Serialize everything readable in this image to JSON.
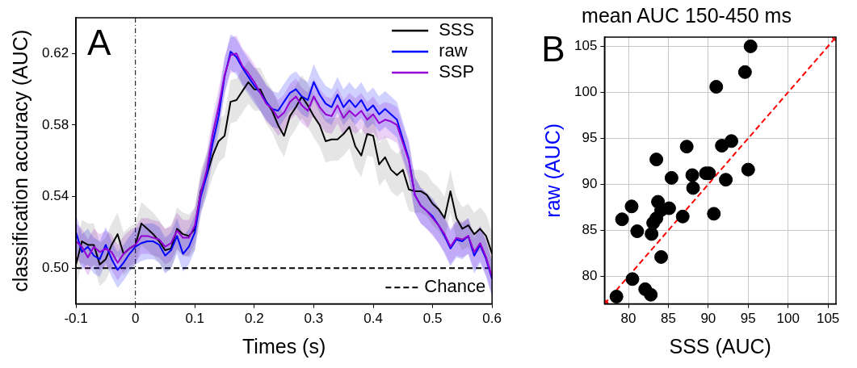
{
  "chart_data": [
    {
      "type": "line",
      "xlabel": "Times (s)",
      "ylabel": "classification accuracy (AUC)",
      "annotations": [
        "A"
      ],
      "x": [
        -0.1,
        -0.09,
        -0.08,
        -0.07,
        -0.06,
        -0.05,
        -0.04,
        -0.03,
        -0.02,
        -0.01,
        0,
        0.01,
        0.02,
        0.03,
        0.04,
        0.05,
        0.06,
        0.07,
        0.08,
        0.09,
        0.1,
        0.11,
        0.12,
        0.13,
        0.14,
        0.15,
        0.16,
        0.17,
        0.18,
        0.19,
        0.2,
        0.21,
        0.22,
        0.23,
        0.24,
        0.25,
        0.26,
        0.27,
        0.28,
        0.29,
        0.3,
        0.31,
        0.32,
        0.33,
        0.34,
        0.35,
        0.36,
        0.37,
        0.38,
        0.39,
        0.4,
        0.41,
        0.42,
        0.43,
        0.44,
        0.45,
        0.46,
        0.47,
        0.48,
        0.49,
        0.5,
        0.51,
        0.52,
        0.53,
        0.54,
        0.55,
        0.56,
        0.57,
        0.58,
        0.59,
        0.6
      ],
      "series": [
        {
          "name": "SSS",
          "color": "#000000",
          "values": [
            0.502,
            0.515,
            0.513,
            0.513,
            0.502,
            0.505,
            0.513,
            0.519,
            0.508,
            0.511,
            0.513,
            0.525,
            0.522,
            0.519,
            0.515,
            0.51,
            0.511,
            0.522,
            0.519,
            0.518,
            0.522,
            0.543,
            0.552,
            0.563,
            0.571,
            0.574,
            0.593,
            0.594,
            0.599,
            0.604,
            0.6,
            0.6,
            0.593,
            0.588,
            0.58,
            0.574,
            0.585,
            0.59,
            0.596,
            0.591,
            0.585,
            0.58,
            0.571,
            0.572,
            0.572,
            0.575,
            0.579,
            0.568,
            0.563,
            0.575,
            0.574,
            0.558,
            0.562,
            0.555,
            0.552,
            0.555,
            0.544,
            0.543,
            0.543,
            0.541,
            0.536,
            0.533,
            0.528,
            0.543,
            0.528,
            0.522,
            0.524,
            0.519,
            0.522,
            0.518,
            0.508
          ],
          "lower": [
            0.49,
            0.503,
            0.501,
            0.501,
            0.49,
            0.493,
            0.501,
            0.507,
            0.496,
            0.499,
            0.501,
            0.513,
            0.51,
            0.507,
            0.503,
            0.498,
            0.499,
            0.51,
            0.507,
            0.506,
            0.51,
            0.531,
            0.54,
            0.551,
            0.559,
            0.562,
            0.581,
            0.582,
            0.587,
            0.592,
            0.588,
            0.588,
            0.581,
            0.576,
            0.568,
            0.562,
            0.573,
            0.578,
            0.584,
            0.579,
            0.573,
            0.568,
            0.559,
            0.56,
            0.56,
            0.563,
            0.567,
            0.556,
            0.551,
            0.563,
            0.562,
            0.546,
            0.55,
            0.543,
            0.54,
            0.543,
            0.532,
            0.531,
            0.531,
            0.529,
            0.524,
            0.521,
            0.516,
            0.531,
            0.516,
            0.51,
            0.512,
            0.507,
            0.51,
            0.506,
            0.496
          ],
          "upper": [
            0.514,
            0.527,
            0.525,
            0.525,
            0.514,
            0.517,
            0.525,
            0.531,
            0.52,
            0.523,
            0.525,
            0.537,
            0.534,
            0.531,
            0.527,
            0.522,
            0.523,
            0.534,
            0.531,
            0.53,
            0.534,
            0.555,
            0.564,
            0.575,
            0.583,
            0.586,
            0.605,
            0.606,
            0.611,
            0.616,
            0.612,
            0.612,
            0.605,
            0.6,
            0.592,
            0.586,
            0.597,
            0.602,
            0.608,
            0.603,
            0.597,
            0.592,
            0.583,
            0.584,
            0.584,
            0.587,
            0.591,
            0.58,
            0.575,
            0.587,
            0.586,
            0.57,
            0.574,
            0.567,
            0.564,
            0.567,
            0.556,
            0.555,
            0.555,
            0.553,
            0.548,
            0.545,
            0.54,
            0.555,
            0.54,
            0.534,
            0.536,
            0.531,
            0.534,
            0.53,
            0.52
          ]
        },
        {
          "name": "raw",
          "color": "#0000ff",
          "values": [
            0.52,
            0.509,
            0.512,
            0.507,
            0.505,
            0.513,
            0.505,
            0.499,
            0.503,
            0.508,
            0.512,
            0.514,
            0.515,
            0.515,
            0.513,
            0.507,
            0.51,
            0.518,
            0.508,
            0.512,
            0.52,
            0.54,
            0.552,
            0.57,
            0.585,
            0.607,
            0.621,
            0.618,
            0.612,
            0.607,
            0.602,
            0.598,
            0.593,
            0.589,
            0.588,
            0.593,
            0.598,
            0.6,
            0.596,
            0.594,
            0.604,
            0.597,
            0.592,
            0.59,
            0.597,
            0.59,
            0.594,
            0.59,
            0.594,
            0.588,
            0.591,
            0.586,
            0.589,
            0.586,
            0.583,
            0.572,
            0.561,
            0.541,
            0.535,
            0.532,
            0.529,
            0.524,
            0.518,
            0.511,
            0.516,
            0.515,
            0.518,
            0.507,
            0.513,
            0.505,
            0.494
          ],
          "lower": [
            0.51,
            0.499,
            0.502,
            0.497,
            0.495,
            0.503,
            0.495,
            0.489,
            0.493,
            0.498,
            0.502,
            0.504,
            0.505,
            0.505,
            0.503,
            0.497,
            0.5,
            0.508,
            0.498,
            0.502,
            0.51,
            0.53,
            0.542,
            0.56,
            0.575,
            0.597,
            0.611,
            0.608,
            0.602,
            0.597,
            0.592,
            0.588,
            0.583,
            0.579,
            0.578,
            0.583,
            0.588,
            0.59,
            0.586,
            0.584,
            0.594,
            0.587,
            0.582,
            0.58,
            0.587,
            0.58,
            0.584,
            0.58,
            0.584,
            0.578,
            0.581,
            0.576,
            0.579,
            0.576,
            0.573,
            0.562,
            0.551,
            0.531,
            0.525,
            0.522,
            0.519,
            0.514,
            0.508,
            0.501,
            0.506,
            0.505,
            0.508,
            0.497,
            0.503,
            0.495,
            0.484
          ],
          "upper": [
            0.53,
            0.519,
            0.522,
            0.517,
            0.515,
            0.523,
            0.515,
            0.509,
            0.513,
            0.518,
            0.522,
            0.524,
            0.525,
            0.525,
            0.523,
            0.517,
            0.52,
            0.528,
            0.518,
            0.522,
            0.53,
            0.55,
            0.562,
            0.58,
            0.595,
            0.617,
            0.631,
            0.628,
            0.622,
            0.617,
            0.612,
            0.608,
            0.603,
            0.599,
            0.598,
            0.603,
            0.608,
            0.61,
            0.606,
            0.604,
            0.614,
            0.607,
            0.602,
            0.6,
            0.607,
            0.6,
            0.604,
            0.6,
            0.604,
            0.598,
            0.601,
            0.596,
            0.599,
            0.596,
            0.593,
            0.582,
            0.571,
            0.551,
            0.545,
            0.542,
            0.539,
            0.534,
            0.528,
            0.521,
            0.526,
            0.525,
            0.528,
            0.517,
            0.523,
            0.515,
            0.504
          ]
        },
        {
          "name": "SSP",
          "color": "#9400d3",
          "values": [
            0.515,
            0.512,
            0.506,
            0.512,
            0.509,
            0.511,
            0.509,
            0.503,
            0.508,
            0.511,
            0.513,
            0.518,
            0.518,
            0.517,
            0.516,
            0.512,
            0.514,
            0.521,
            0.517,
            0.517,
            0.524,
            0.542,
            0.555,
            0.575,
            0.59,
            0.608,
            0.619,
            0.62,
            0.613,
            0.609,
            0.604,
            0.598,
            0.592,
            0.589,
            0.584,
            0.587,
            0.593,
            0.596,
            0.591,
            0.588,
            0.596,
            0.59,
            0.586,
            0.585,
            0.591,
            0.584,
            0.588,
            0.585,
            0.588,
            0.583,
            0.586,
            0.581,
            0.583,
            0.582,
            0.58,
            0.57,
            0.56,
            0.541,
            0.535,
            0.532,
            0.528,
            0.524,
            0.519,
            0.512,
            0.517,
            0.516,
            0.518,
            0.509,
            0.514,
            0.506,
            0.495
          ],
          "lower": [
            0.505,
            0.502,
            0.496,
            0.502,
            0.499,
            0.501,
            0.499,
            0.493,
            0.498,
            0.501,
            0.503,
            0.508,
            0.508,
            0.507,
            0.506,
            0.502,
            0.504,
            0.511,
            0.507,
            0.507,
            0.514,
            0.532,
            0.545,
            0.565,
            0.58,
            0.598,
            0.609,
            0.61,
            0.603,
            0.599,
            0.594,
            0.588,
            0.582,
            0.579,
            0.574,
            0.577,
            0.583,
            0.586,
            0.581,
            0.578,
            0.586,
            0.58,
            0.576,
            0.575,
            0.581,
            0.574,
            0.578,
            0.575,
            0.578,
            0.573,
            0.576,
            0.571,
            0.573,
            0.572,
            0.57,
            0.56,
            0.55,
            0.531,
            0.525,
            0.522,
            0.518,
            0.514,
            0.509,
            0.502,
            0.507,
            0.506,
            0.508,
            0.499,
            0.504,
            0.496,
            0.485
          ],
          "upper": [
            0.525,
            0.522,
            0.516,
            0.522,
            0.519,
            0.521,
            0.519,
            0.513,
            0.518,
            0.521,
            0.523,
            0.528,
            0.528,
            0.527,
            0.526,
            0.522,
            0.524,
            0.531,
            0.527,
            0.527,
            0.534,
            0.552,
            0.565,
            0.585,
            0.6,
            0.618,
            0.629,
            0.63,
            0.623,
            0.619,
            0.614,
            0.608,
            0.602,
            0.599,
            0.594,
            0.597,
            0.603,
            0.606,
            0.601,
            0.598,
            0.606,
            0.6,
            0.596,
            0.595,
            0.601,
            0.594,
            0.598,
            0.595,
            0.598,
            0.593,
            0.596,
            0.591,
            0.593,
            0.592,
            0.59,
            0.58,
            0.57,
            0.551,
            0.545,
            0.542,
            0.538,
            0.534,
            0.529,
            0.522,
            0.527,
            0.526,
            0.528,
            0.519,
            0.524,
            0.516,
            0.505
          ]
        }
      ],
      "xlim": [
        -0.1,
        0.6
      ],
      "xticks": [
        -0.1,
        0,
        0.1,
        0.2,
        0.3,
        0.4,
        0.5,
        0.6
      ],
      "ylim": [
        0.48,
        0.64
      ],
      "yticks": [
        {
          "value": 0.5,
          "label": "0.50"
        },
        {
          "value": 0.54,
          "label": "0.54"
        },
        {
          "value": 0.58,
          "label": "0.58"
        },
        {
          "value": 0.62,
          "label": "0.62"
        }
      ],
      "ref_lines": [
        {
          "axis": "y",
          "value": 0.5,
          "label": "Chance",
          "color": "#000000",
          "line_style": "dashed"
        },
        {
          "axis": "x",
          "value": 0,
          "color": "#000000",
          "line_style": "dotted"
        }
      ],
      "grid": false,
      "legend": "top right",
      "line_style": "solid",
      "marker": "none"
    },
    {
      "type": "scatter",
      "title": "mean AUC 150-450 ms",
      "xlabel": "SSS (AUC)",
      "ylabel": "raw (AUC)",
      "annotations": [
        "B"
      ],
      "series": [
        {
          "color": "#000000",
          "x": [
            95.3,
            94.6,
            91.0,
            92.9,
            91.7,
            87.3,
            83.5,
            95.0,
            85.4,
            88.0,
            89.7,
            90.1,
            92.2,
            88.1,
            80.4,
            83.7,
            84.1,
            85.1,
            79.2,
            83.5,
            83.1,
            86.8,
            90.7,
            81.1,
            82.9,
            84.1,
            80.5,
            82.1,
            82.8,
            78.5
          ],
          "values": [
            105.0,
            102.2,
            100.6,
            94.7,
            94.2,
            94.1,
            92.7,
            91.6,
            90.7,
            91.0,
            91.2,
            91.2,
            90.5,
            89.6,
            87.6,
            88.1,
            87.2,
            87.4,
            86.2,
            86.3,
            85.8,
            86.5,
            86.8,
            84.9,
            84.6,
            82.1,
            79.7,
            78.6,
            78.0,
            77.8
          ]
        },
        {
          "type": "line",
          "color": "#ff0000",
          "line_style": "dashed",
          "x": [
            77,
            106
          ],
          "values": [
            77,
            106
          ]
        }
      ],
      "xlim": [
        77,
        106
      ],
      "xticks": [
        80,
        85,
        90,
        95,
        100,
        105
      ],
      "ylim": [
        77,
        106
      ],
      "yticks": [
        80,
        85,
        90,
        95,
        100,
        105
      ],
      "grid": true,
      "marker": "circle"
    }
  ]
}
